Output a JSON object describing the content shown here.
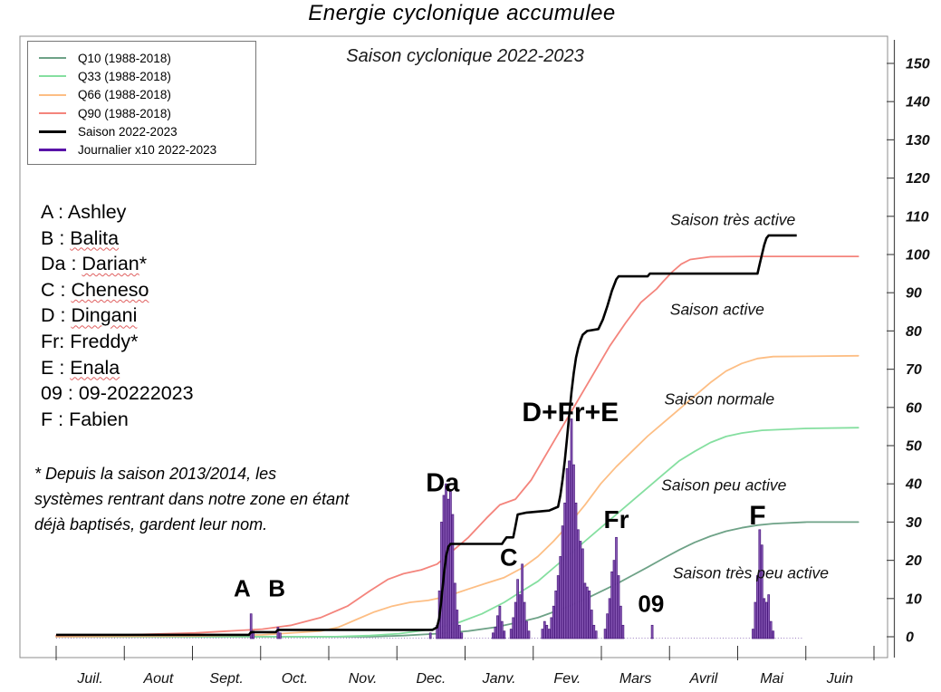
{
  "title": "Energie cyclonique accumulee",
  "subtitle": "Saison cyclonique 2022-2023",
  "legend": {
    "items": [
      {
        "key": "q10",
        "label": "Q10 (1988-2018)",
        "color": "#6ea287",
        "thickness": 2
      },
      {
        "key": "q33",
        "label": "Q33 (1988-2018)",
        "color": "#85dfa0",
        "thickness": 2
      },
      {
        "key": "q66",
        "label": "Q66 (1988-2018)",
        "color": "#fdbe84",
        "thickness": 2
      },
      {
        "key": "q90",
        "label": "Q90 (1988-2018)",
        "color": "#f4847c",
        "thickness": 2
      },
      {
        "key": "saison",
        "label": "Saison 2022-2023",
        "color": "#000000",
        "thickness": 3
      },
      {
        "key": "journalier",
        "label": "Journalier x10 2022-2023",
        "color": "#5913a8",
        "thickness": 3
      }
    ]
  },
  "storm_key": [
    {
      "prefix": "A : ",
      "name": "Ashley",
      "suffix": "",
      "wavy": false
    },
    {
      "prefix": "B : ",
      "name": "Balita",
      "suffix": "",
      "wavy": true
    },
    {
      "prefix": "Da : ",
      "name": "Darian",
      "suffix": "*",
      "wavy": true
    },
    {
      "prefix": "C : ",
      "name": "Cheneso",
      "suffix": "",
      "wavy": true
    },
    {
      "prefix": "D : ",
      "name": "Dingani",
      "suffix": "",
      "wavy": true
    },
    {
      "prefix": "Fr: ",
      "name": "Freddy",
      "suffix": "*",
      "wavy": false
    },
    {
      "prefix": "E : ",
      "name": "Enala",
      "suffix": "",
      "wavy": true
    },
    {
      "prefix": "09 : ",
      "name": "09-20222023",
      "suffix": "",
      "wavy": false
    },
    {
      "prefix": "F : ",
      "name": "Fabien",
      "suffix": "",
      "wavy": false
    }
  ],
  "footnote": "* Depuis la saison 2013/2014, les systèmes rentrant dans notre zone en étant déjà baptisés, gardent leur nom.",
  "chart_data": {
    "type": "line",
    "title": "Energie cyclonique accumulee",
    "subtitle": "Saison cyclonique 2022-2023",
    "x_unit": "day of cyclone season (0 = 1 Juil.)",
    "months": [
      "Juil.",
      "Aout",
      "Sept.",
      "Oct.",
      "Nov.",
      "Dec.",
      "Janv.",
      "Fev.",
      "Mars",
      "Avril",
      "Mai",
      "Juin"
    ],
    "y_ticks": [
      0,
      10,
      20,
      30,
      40,
      50,
      60,
      70,
      80,
      90,
      100,
      110,
      120,
      130,
      140,
      150
    ],
    "ylim": [
      0,
      155
    ],
    "grid": false,
    "legend_position": "top-left",
    "series": [
      {
        "key": "q10",
        "name": "Q10 (1988-2018)",
        "color": "#6ea287",
        "width": 1.8,
        "points": [
          [
            0,
            0
          ],
          [
            140,
            0
          ],
          [
            155,
            0.3
          ],
          [
            170,
            0.8
          ],
          [
            184,
            1.5
          ],
          [
            196,
            2.5
          ],
          [
            208,
            4
          ],
          [
            215,
            5
          ],
          [
            222,
            6.5
          ],
          [
            229,
            8
          ],
          [
            236,
            9.8
          ],
          [
            243,
            11.8
          ],
          [
            250,
            13.8
          ],
          [
            257,
            16
          ],
          [
            264,
            18.2
          ],
          [
            271,
            20.5
          ],
          [
            278,
            22.7
          ],
          [
            285,
            24.7
          ],
          [
            292,
            26.3
          ],
          [
            299,
            27.6
          ],
          [
            306,
            28.5
          ],
          [
            313,
            29.2
          ],
          [
            320,
            29.6
          ],
          [
            335,
            30
          ],
          [
            358,
            30
          ]
        ]
      },
      {
        "key": "q33",
        "name": "Q33 (1988-2018)",
        "color": "#85dfa0",
        "width": 1.8,
        "points": [
          [
            0,
            0
          ],
          [
            123,
            0
          ],
          [
            140,
            0.3
          ],
          [
            153,
            0.8
          ],
          [
            168,
            2
          ],
          [
            180,
            3.8
          ],
          [
            190,
            6
          ],
          [
            200,
            9
          ],
          [
            208,
            12
          ],
          [
            215,
            14.5
          ],
          [
            222,
            18
          ],
          [
            229,
            21.5
          ],
          [
            236,
            25
          ],
          [
            243,
            28.5
          ],
          [
            250,
            32
          ],
          [
            257,
            35.5
          ],
          [
            264,
            39
          ],
          [
            271,
            42.5
          ],
          [
            278,
            46
          ],
          [
            285,
            48.5
          ],
          [
            292,
            50.8
          ],
          [
            299,
            52.4
          ],
          [
            306,
            53.3
          ],
          [
            315,
            54
          ],
          [
            335,
            54.5
          ],
          [
            358,
            54.7
          ]
        ]
      },
      {
        "key": "q66",
        "name": "Q66 (1988-2018)",
        "color": "#fdbe84",
        "width": 1.8,
        "points": [
          [
            0,
            0
          ],
          [
            62,
            0.2
          ],
          [
            92,
            0.5
          ],
          [
            118,
            1.5
          ],
          [
            126,
            2.5
          ],
          [
            134,
            4.5
          ],
          [
            142,
            6.5
          ],
          [
            150,
            8
          ],
          [
            158,
            9
          ],
          [
            166,
            9.5
          ],
          [
            174,
            10.5
          ],
          [
            184,
            12.5
          ],
          [
            192,
            14
          ],
          [
            200,
            15.5
          ],
          [
            208,
            18
          ],
          [
            215,
            21
          ],
          [
            222,
            25
          ],
          [
            229,
            29.5
          ],
          [
            236,
            34.5
          ],
          [
            243,
            40
          ],
          [
            250,
            44.5
          ],
          [
            257,
            48.5
          ],
          [
            264,
            52.5
          ],
          [
            271,
            56
          ],
          [
            278,
            59.5
          ],
          [
            285,
            63
          ],
          [
            292,
            66.5
          ],
          [
            299,
            69.5
          ],
          [
            306,
            71.5
          ],
          [
            313,
            72.8
          ],
          [
            320,
            73.3
          ],
          [
            358,
            73.5
          ]
        ]
      },
      {
        "key": "q90",
        "name": "Q90 (1988-2018)",
        "color": "#f4847c",
        "width": 1.8,
        "points": [
          [
            0,
            0.3
          ],
          [
            31,
            0.5
          ],
          [
            62,
            1
          ],
          [
            92,
            2
          ],
          [
            105,
            3
          ],
          [
            118,
            5
          ],
          [
            130,
            8
          ],
          [
            140,
            12
          ],
          [
            148,
            15
          ],
          [
            155,
            16.5
          ],
          [
            163,
            17.5
          ],
          [
            170,
            19
          ],
          [
            178,
            23
          ],
          [
            184,
            26
          ],
          [
            192,
            31
          ],
          [
            198,
            34.5
          ],
          [
            205,
            36
          ],
          [
            212,
            41
          ],
          [
            219,
            48
          ],
          [
            226,
            55
          ],
          [
            233,
            62
          ],
          [
            240,
            69
          ],
          [
            247,
            76
          ],
          [
            254,
            82
          ],
          [
            261,
            87.5
          ],
          [
            268,
            91
          ],
          [
            271,
            93
          ],
          [
            275,
            95.5
          ],
          [
            279,
            97.5
          ],
          [
            283,
            98.7
          ],
          [
            292,
            99.4
          ],
          [
            310,
            99.5
          ],
          [
            358,
            99.5
          ]
        ]
      },
      {
        "key": "saison",
        "name": "Saison 2022-2023",
        "color": "#000000",
        "width": 2.6,
        "points": [
          [
            0,
            0.5
          ],
          [
            86,
            0.5
          ],
          [
            87,
            1.2
          ],
          [
            98,
            1.2
          ],
          [
            99,
            1.8
          ],
          [
            168,
            1.8
          ],
          [
            170,
            2.5
          ],
          [
            171,
            5
          ],
          [
            172,
            10
          ],
          [
            173,
            16
          ],
          [
            174,
            21
          ],
          [
            175,
            23.5
          ],
          [
            176,
            24.3
          ],
          [
            199,
            24.3
          ],
          [
            200,
            25.2
          ],
          [
            201,
            26
          ],
          [
            204,
            26
          ],
          [
            205,
            29
          ],
          [
            206,
            32
          ],
          [
            210,
            32.5
          ],
          [
            220,
            33
          ],
          [
            224,
            34
          ],
          [
            225,
            37
          ],
          [
            226,
            41
          ],
          [
            227,
            46
          ],
          [
            228,
            52
          ],
          [
            229,
            58
          ],
          [
            230,
            64
          ],
          [
            231,
            69
          ],
          [
            232,
            73
          ],
          [
            233,
            75.5
          ],
          [
            234,
            77.5
          ],
          [
            235,
            79
          ],
          [
            237,
            80
          ],
          [
            242,
            80.5
          ],
          [
            244,
            83
          ],
          [
            246,
            86.5
          ],
          [
            248,
            90.5
          ],
          [
            250,
            93.5
          ],
          [
            251,
            94.3
          ],
          [
            264,
            94.3
          ],
          [
            265,
            95
          ],
          [
            313,
            95
          ],
          [
            314,
            97.5
          ],
          [
            315,
            100
          ],
          [
            316,
            102.5
          ],
          [
            317,
            104.3
          ],
          [
            318,
            105
          ],
          [
            330.5,
            105
          ]
        ]
      }
    ],
    "daily_bars": {
      "key": "journalier",
      "name": "Journalier x10 2022-2023",
      "color": "#8a5bb8",
      "edge_color": "#49187c",
      "points": [
        [
          87,
          6
        ],
        [
          88,
          1.5
        ],
        [
          99,
          2.5
        ],
        [
          100,
          1
        ],
        [
          167,
          1
        ],
        [
          170,
          3
        ],
        [
          171,
          12
        ],
        [
          172,
          30
        ],
        [
          173,
          37
        ],
        [
          174,
          40
        ],
        [
          175,
          36
        ],
        [
          176,
          38
        ],
        [
          177,
          32
        ],
        [
          178,
          14
        ],
        [
          179,
          7
        ],
        [
          180,
          3
        ],
        [
          181,
          1
        ],
        [
          195,
          1
        ],
        [
          196,
          2.5
        ],
        [
          197,
          5.5
        ],
        [
          198,
          8
        ],
        [
          199,
          4
        ],
        [
          200,
          1.5
        ],
        [
          203,
          2
        ],
        [
          204,
          5
        ],
        [
          205,
          9
        ],
        [
          206,
          15
        ],
        [
          207,
          11
        ],
        [
          208,
          19
        ],
        [
          209,
          9
        ],
        [
          210,
          4
        ],
        [
          211,
          1.5
        ],
        [
          217,
          2
        ],
        [
          218,
          4
        ],
        [
          219,
          3
        ],
        [
          220,
          2
        ],
        [
          221,
          5
        ],
        [
          222,
          8
        ],
        [
          223,
          12
        ],
        [
          224,
          16
        ],
        [
          225,
          21
        ],
        [
          226,
          29
        ],
        [
          227,
          35
        ],
        [
          228,
          44
        ],
        [
          229,
          46
        ],
        [
          230,
          57
        ],
        [
          231,
          45
        ],
        [
          232,
          35
        ],
        [
          233,
          28
        ],
        [
          234,
          25
        ],
        [
          235,
          23
        ],
        [
          236,
          14
        ],
        [
          237,
          13
        ],
        [
          238,
          12
        ],
        [
          239,
          7
        ],
        [
          240,
          3
        ],
        [
          241,
          1.5
        ],
        [
          245,
          2
        ],
        [
          246,
          6
        ],
        [
          247,
          10
        ],
        [
          248,
          17
        ],
        [
          249,
          20
        ],
        [
          250,
          26
        ],
        [
          251,
          16
        ],
        [
          252,
          8
        ],
        [
          253,
          3
        ],
        [
          266,
          3
        ],
        [
          311,
          2
        ],
        [
          312,
          9
        ],
        [
          313,
          16
        ],
        [
          314,
          28
        ],
        [
          315,
          24
        ],
        [
          316,
          10
        ],
        [
          317,
          9
        ],
        [
          318,
          11
        ],
        [
          319,
          4
        ],
        [
          320,
          1.5
        ]
      ],
      "baseline_end_day": 333
    },
    "region_labels": [
      {
        "text": "Saison très active",
        "day": 302,
        "value": 109
      },
      {
        "text": "Saison active",
        "day": 295,
        "value": 85.5
      },
      {
        "text": "Saison normale",
        "day": 296,
        "value": 62
      },
      {
        "text": "Saison peu active",
        "day": 298,
        "value": 39.5
      },
      {
        "text": "Saison très peu active",
        "day": 310,
        "value": 16.5
      }
    ],
    "storm_labels": [
      {
        "text": "A",
        "day": 83,
        "value": 12.6,
        "size": 26
      },
      {
        "text": "B",
        "day": 98.5,
        "value": 12.6,
        "size": 26
      },
      {
        "text": "Da",
        "day": 172.5,
        "value": 40,
        "size": 29
      },
      {
        "text": "C",
        "day": 202,
        "value": 20.6,
        "size": 27
      },
      {
        "text": "D+Fr+E",
        "day": 229.5,
        "value": 58.5,
        "size": 30
      },
      {
        "text": "Fr",
        "day": 250,
        "value": 30.6,
        "size": 28
      },
      {
        "text": "09",
        "day": 265.5,
        "value": 8.5,
        "size": 26
      },
      {
        "text": "F",
        "day": 313,
        "value": 31.5,
        "size": 30
      }
    ]
  }
}
